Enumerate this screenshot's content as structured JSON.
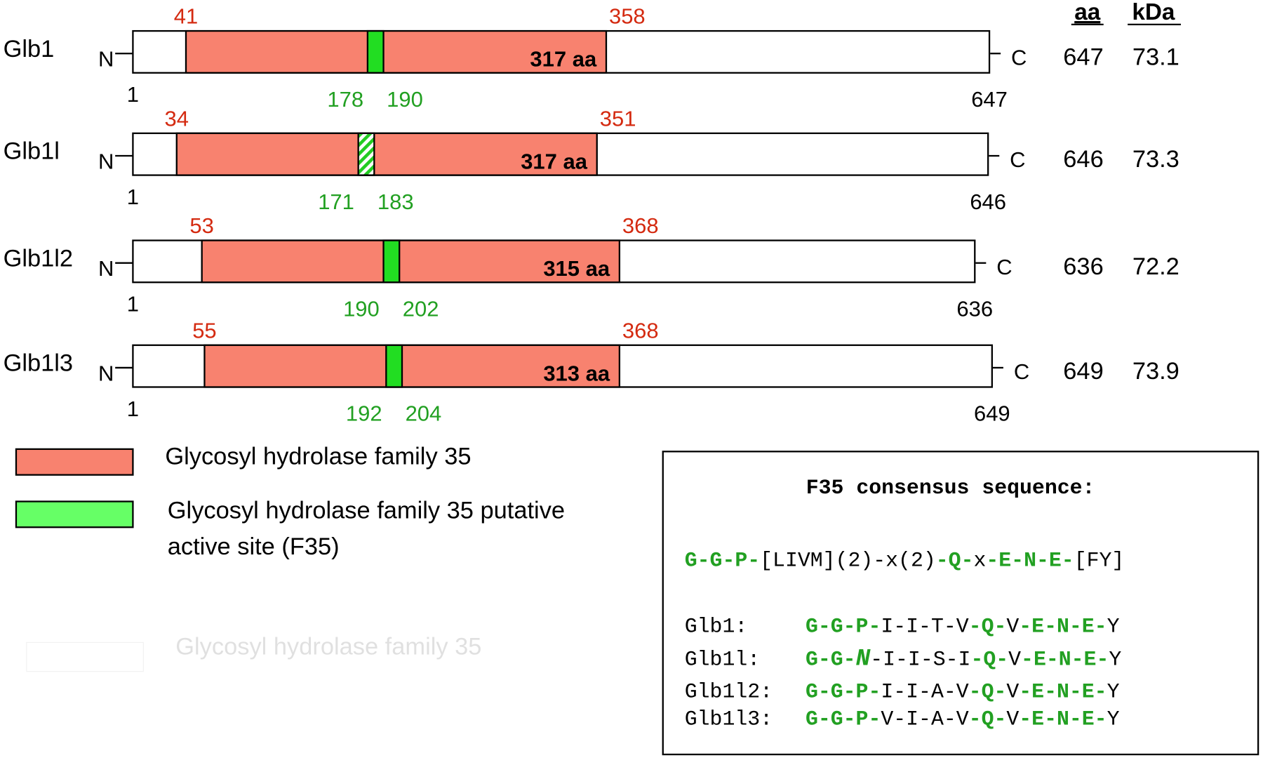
{
  "header": {
    "aa": "aa",
    "kDa": "kDa"
  },
  "n_term": "N",
  "c_term": "C",
  "proteins": [
    {
      "name": "Glb1",
      "start": 1,
      "length": 647,
      "domain_start": 41,
      "domain_end": 358,
      "site_start": 178,
      "site_end": 190,
      "domain_size": "317 aa",
      "aa": 647,
      "kDa": 73.1,
      "site_style": "solid"
    },
    {
      "name": "Glb1l",
      "start": 1,
      "length": 646,
      "domain_start": 34,
      "domain_end": 351,
      "site_start": 171,
      "site_end": 183,
      "domain_size": "317 aa",
      "aa": 646,
      "kDa": 73.3,
      "site_style": "hatched"
    },
    {
      "name": "Glb1l2",
      "start": 1,
      "length": 636,
      "domain_start": 53,
      "domain_end": 368,
      "site_start": 190,
      "site_end": 202,
      "domain_size": "315 aa",
      "aa": 636,
      "kDa": 72.2,
      "site_style": "solid"
    },
    {
      "name": "Glb1l3",
      "start": 1,
      "length": 649,
      "domain_start": 55,
      "domain_end": 368,
      "site_start": 192,
      "site_end": 204,
      "domain_size": "313 aa",
      "aa": 649,
      "kDa": 73.9,
      "site_style": "solid"
    }
  ],
  "legend": [
    {
      "lines": [
        "Glycosyl hydrolase family 35"
      ],
      "color": "#f8826f"
    },
    {
      "lines": [
        "Glycosyl hydrolase family 35 putative",
        "active site (F35)"
      ],
      "color": "#66ff66"
    }
  ],
  "ghost_legend": "Glycosyl hydrolase family 35",
  "consensus": {
    "title": "F35 consensus sequence:",
    "pattern": [
      {
        "text": "G-G-P-",
        "highlight": true
      },
      {
        "text": "[LIVM](2)-x(2)",
        "highlight": false
      },
      {
        "text": "-Q-",
        "highlight": true
      },
      {
        "text": "x",
        "highlight": false
      },
      {
        "text": "-E-N-E-",
        "highlight": true
      },
      {
        "text": "[FY]",
        "highlight": false
      }
    ],
    "rows": [
      {
        "name": "Glb1:",
        "segments": [
          {
            "text": "G-G-P-",
            "highlight": true
          },
          {
            "text": "I-I-T-V",
            "highlight": false
          },
          {
            "text": "-Q-",
            "highlight": true
          },
          {
            "text": "V",
            "highlight": false
          },
          {
            "text": "-E-N-E-",
            "highlight": true
          },
          {
            "text": "Y",
            "highlight": false
          }
        ]
      },
      {
        "name": "Glb1l:",
        "segments": [
          {
            "text": "G-G-",
            "highlight": true
          },
          {
            "text": "N",
            "highlight": true,
            "italic": true
          },
          {
            "text": "-I-I-S-I",
            "highlight": false
          },
          {
            "text": "-Q-",
            "highlight": true
          },
          {
            "text": "V",
            "highlight": false
          },
          {
            "text": "-E-N-E-",
            "highlight": true
          },
          {
            "text": "Y",
            "highlight": false
          }
        ]
      },
      {
        "name": "Glb1l2:",
        "segments": [
          {
            "text": "G-G-P-",
            "highlight": true
          },
          {
            "text": "I-I-A-V",
            "highlight": false
          },
          {
            "text": "-Q-",
            "highlight": true
          },
          {
            "text": "V",
            "highlight": false
          },
          {
            "text": "-E-N-E-",
            "highlight": true
          },
          {
            "text": "Y",
            "highlight": false
          }
        ]
      },
      {
        "name": "Glb1l3:",
        "segments": [
          {
            "text": "G-G-P-",
            "highlight": true
          },
          {
            "text": "V-I-A-V",
            "highlight": false
          },
          {
            "text": "-Q-",
            "highlight": true
          },
          {
            "text": "V",
            "highlight": false
          },
          {
            "text": "-E-N-E-",
            "highlight": true
          },
          {
            "text": "Y",
            "highlight": false
          }
        ]
      }
    ]
  }
}
